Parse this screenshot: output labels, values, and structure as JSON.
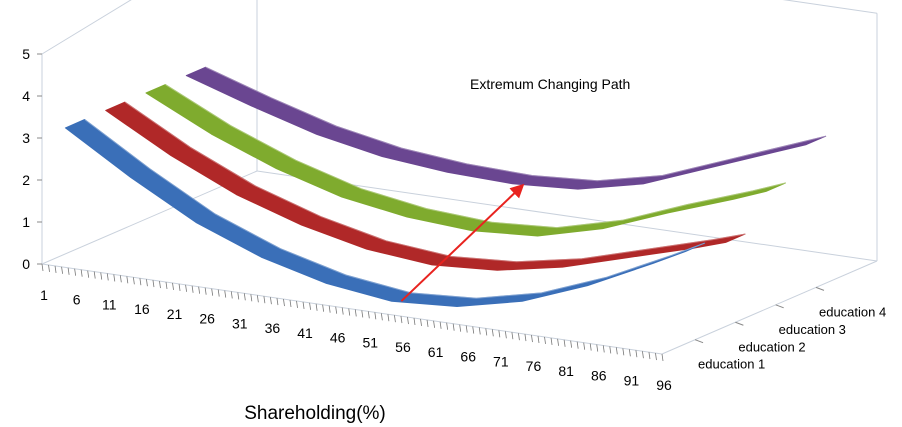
{
  "chart_data": {
    "type": "3d-surface-ribbon",
    "title": "",
    "xlabel": "Shareholding(%)",
    "ylabel": "",
    "ylim": [
      0,
      5
    ],
    "y_ticks": [
      "0",
      "1",
      "2",
      "3",
      "4",
      "5"
    ],
    "x_tick_labels": [
      "1",
      "6",
      "11",
      "16",
      "21",
      "26",
      "31",
      "36",
      "41",
      "46",
      "51",
      "56",
      "61",
      "66",
      "71",
      "76",
      "81",
      "86",
      "91",
      "96"
    ],
    "x": [
      1,
      11,
      21,
      31,
      41,
      51,
      61,
      71,
      81,
      91,
      96
    ],
    "depth_categories": [
      "education 1",
      "education 2",
      "education 3",
      "education 4"
    ],
    "series": [
      {
        "name": "education 1",
        "color": "#3a6fb8",
        "values": [
          3.0,
          2.05,
          1.2,
          0.6,
          0.2,
          0.0,
          0.1,
          0.45,
          1.05,
          1.8,
          2.2
        ]
      },
      {
        "name": "education 2",
        "color": "#b02828",
        "values": [
          3.0,
          2.15,
          1.45,
          0.95,
          0.6,
          0.45,
          0.55,
          0.85,
          1.3,
          1.75,
          2.0
        ]
      },
      {
        "name": "education 3",
        "color": "#7fab2e",
        "values": [
          3.0,
          2.25,
          1.65,
          1.2,
          0.95,
          0.85,
          0.95,
          1.35,
          1.95,
          2.5,
          2.8
        ]
      },
      {
        "name": "education 4",
        "color": "#6a4691",
        "values": [
          3.0,
          2.5,
          2.05,
          1.75,
          1.6,
          1.55,
          1.65,
          2.0,
          2.6,
          3.2,
          3.5
        ]
      }
    ],
    "annotation": "Extremum Changing Path",
    "arrow_color": "#e8231f",
    "grid": false,
    "legend": "none"
  }
}
